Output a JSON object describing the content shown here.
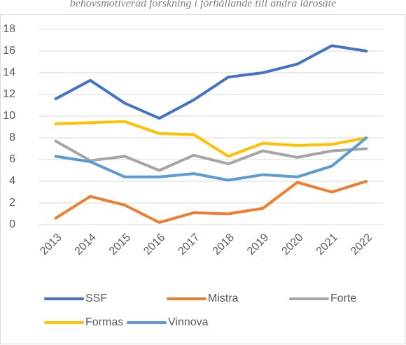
{
  "chart_data": {
    "type": "line",
    "title": "behovsmotiverad forskning i förhållande till andra lärosäte",
    "categories": [
      "2013",
      "2014",
      "2015",
      "2016",
      "2017",
      "2018",
      "2019",
      "2020",
      "2021",
      "2022"
    ],
    "series": [
      {
        "name": "SSF",
        "color": "#4472c4",
        "values": [
          11.6,
          13.3,
          11.2,
          9.8,
          11.5,
          13.6,
          14.0,
          14.8,
          16.5,
          16.0
        ]
      },
      {
        "name": "Mistra",
        "color": "#ed7d31",
        "values": [
          0.6,
          2.6,
          1.8,
          0.2,
          1.1,
          1.0,
          1.5,
          3.9,
          3.0,
          4.0
        ]
      },
      {
        "name": "Forte",
        "color": "#a5a5a5",
        "values": [
          7.7,
          5.9,
          6.3,
          5.0,
          6.4,
          5.6,
          6.8,
          6.2,
          6.8,
          7.0
        ]
      },
      {
        "name": "Formas",
        "color": "#ffc000",
        "values": [
          9.3,
          9.4,
          9.5,
          8.4,
          8.3,
          6.3,
          7.5,
          7.3,
          7.4,
          8.0
        ]
      },
      {
        "name": "Vinnova",
        "color": "#5b9bd5",
        "values": [
          6.3,
          5.8,
          4.4,
          4.4,
          4.7,
          4.1,
          4.6,
          4.4,
          5.4,
          8.0
        ]
      }
    ],
    "ylim": [
      0,
      18
    ],
    "yticks": [
      0,
      2,
      4,
      6,
      8,
      10,
      12,
      14,
      16,
      18
    ],
    "grid": true,
    "legend": "bottom"
  }
}
